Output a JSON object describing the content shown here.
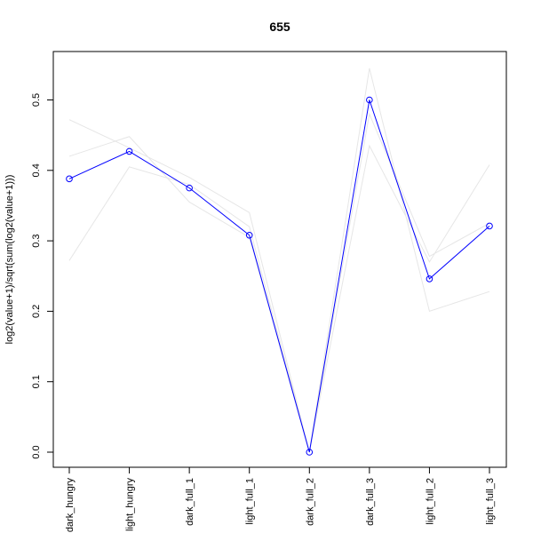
{
  "chart_data": {
    "type": "line",
    "title": "655",
    "xlabel": "",
    "ylabel": "log2(value+1)/sqrt(sum(log2(value+1)))",
    "categories": [
      "dark_hungry",
      "light_hungry",
      "dark_full_1",
      "light_full_1",
      "dark_full_2",
      "dark_full_3",
      "light_full_2",
      "light_full_3"
    ],
    "ylim": [
      0.0,
      0.52
    ],
    "yticks": [
      "0.0",
      "0.1",
      "0.2",
      "0.3",
      "0.4",
      "0.5"
    ],
    "grid": false,
    "series": [
      {
        "values": [
          0.388,
          0.427,
          0.375,
          0.308,
          0.0,
          0.5,
          0.246,
          0.321
        ],
        "color": "#0000FF",
        "marker": "open-circle"
      },
      {
        "values": [
          0.472,
          0.432,
          0.39,
          0.34,
          0.0,
          0.545,
          0.2,
          0.228
        ],
        "color": "#e6e6e6"
      },
      {
        "values": [
          0.42,
          0.448,
          0.355,
          0.305,
          0.0,
          0.435,
          0.27,
          0.408
        ],
        "color": "#e6e6e6"
      },
      {
        "values": [
          0.272,
          0.405,
          0.38,
          0.32,
          0.0,
          0.48,
          0.278,
          0.325
        ],
        "color": "#e6e6e6"
      }
    ]
  }
}
